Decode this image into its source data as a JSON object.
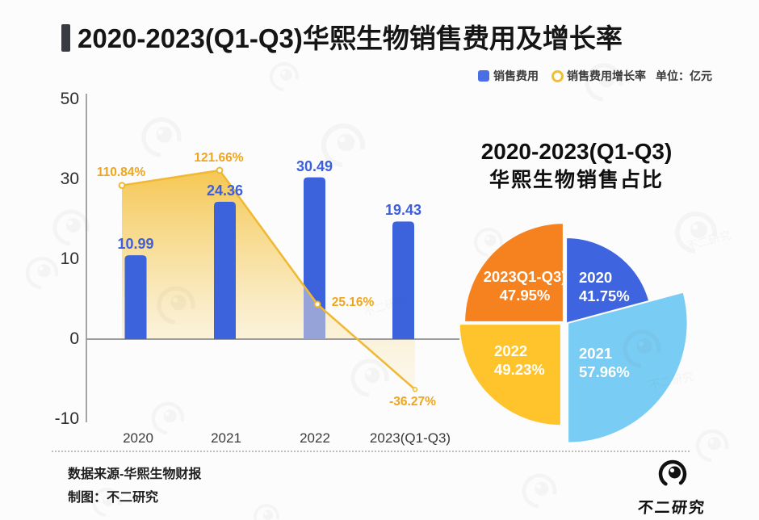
{
  "header": {
    "title": "2020-2023(Q1-Q3)华熙生物销售费用及增长率"
  },
  "legend": {
    "bar_label": "销售费用",
    "line_label": "销售费用增长率",
    "unit_label": "单位：亿元"
  },
  "colors": {
    "bar_blue": "#3C63DC",
    "bar_label_blue": "#3C5FDB",
    "line_gold": "#EFB935",
    "area_gold_top": "#F5C449",
    "growth_label": "#EFA51C",
    "axis_gray": "#A5A5A5",
    "accent_bar": "#3A3A42",
    "pie_2020": "#3E65DF",
    "pie_2021": "#79CCF3",
    "pie_2022": "#FFC32B",
    "pie_2023": "#F5821F"
  },
  "chart_data": [
    {
      "type": "bar",
      "title": "2020-2023(Q1-Q3)华熙生物销售费用及增长率",
      "categories": [
        "2020",
        "2021",
        "2022",
        "2023(Q1-Q3)"
      ],
      "series": [
        {
          "name": "销售费用",
          "type": "bar",
          "values": [
            10.99,
            24.36,
            30.49,
            19.43
          ],
          "labels": [
            "10.99",
            "24.36",
            "30.49",
            "19.43"
          ]
        },
        {
          "name": "销售费用增长率",
          "type": "line",
          "values": [
            110.84,
            121.66,
            25.16,
            -36.27
          ],
          "labels": [
            "110.84%",
            "121.66%",
            "25.16%",
            "-36.27%"
          ]
        }
      ],
      "unit": "亿元",
      "ylabel": "",
      "xlabel": "",
      "y_ticks": [
        50,
        30,
        10,
        0,
        -10
      ],
      "grid": false,
      "legend_position": "top-right"
    },
    {
      "type": "pie",
      "title": "2020-2023(Q1-Q3) 华熙生物销售占比",
      "title_lines": [
        "2020-2023(Q1-Q3)",
        "华熙生物销售占比"
      ],
      "slices": [
        {
          "label": "2020",
          "pct": "41.75%",
          "value": 41.75,
          "color": "#3E65DF"
        },
        {
          "label": "2021",
          "pct": "57.96%",
          "value": 57.96,
          "color": "#79CCF3"
        },
        {
          "label": "2022",
          "pct": "49.23%",
          "value": 49.23,
          "color": "#FFC32B"
        },
        {
          "label": "2023Q1-Q3)",
          "pct": "47.95%",
          "value": 47.95,
          "color": "#F5821F"
        }
      ]
    }
  ],
  "footer": {
    "source": "数据来源-华熙生物财报",
    "credit": "制图：不二研究"
  },
  "brand": {
    "name": "不二研究",
    "watermark_text": "不二研究"
  }
}
